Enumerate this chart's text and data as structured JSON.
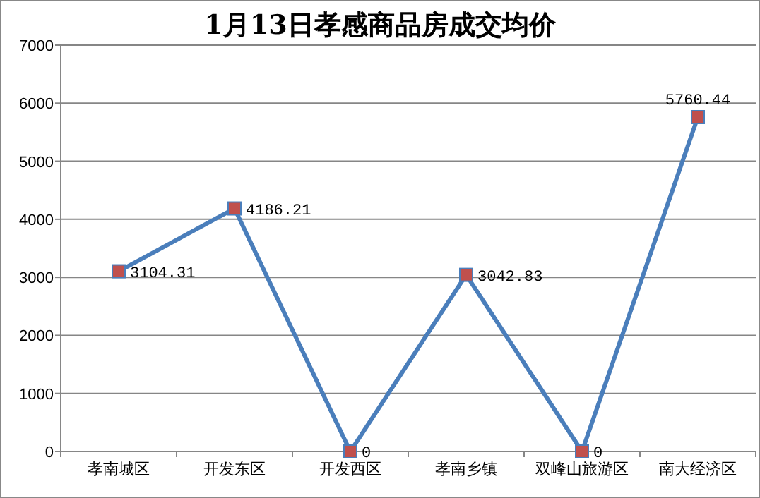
{
  "chart_data": {
    "type": "line",
    "title": "1月13日孝感商品房成交均价",
    "categories": [
      "孝南城区",
      "开发东区",
      "开发西区",
      "孝南乡镇",
      "双峰山旅游区",
      "南大经济区"
    ],
    "values": [
      3104.31,
      4186.21,
      0,
      3042.83,
      0,
      5760.44
    ],
    "color": "#4a7ebb",
    "marker": "square",
    "data_labels": true,
    "ylim": [
      0,
      7000
    ],
    "yticks": [
      0,
      1000,
      2000,
      3000,
      4000,
      5000,
      6000,
      7000
    ],
    "grid": "y"
  }
}
